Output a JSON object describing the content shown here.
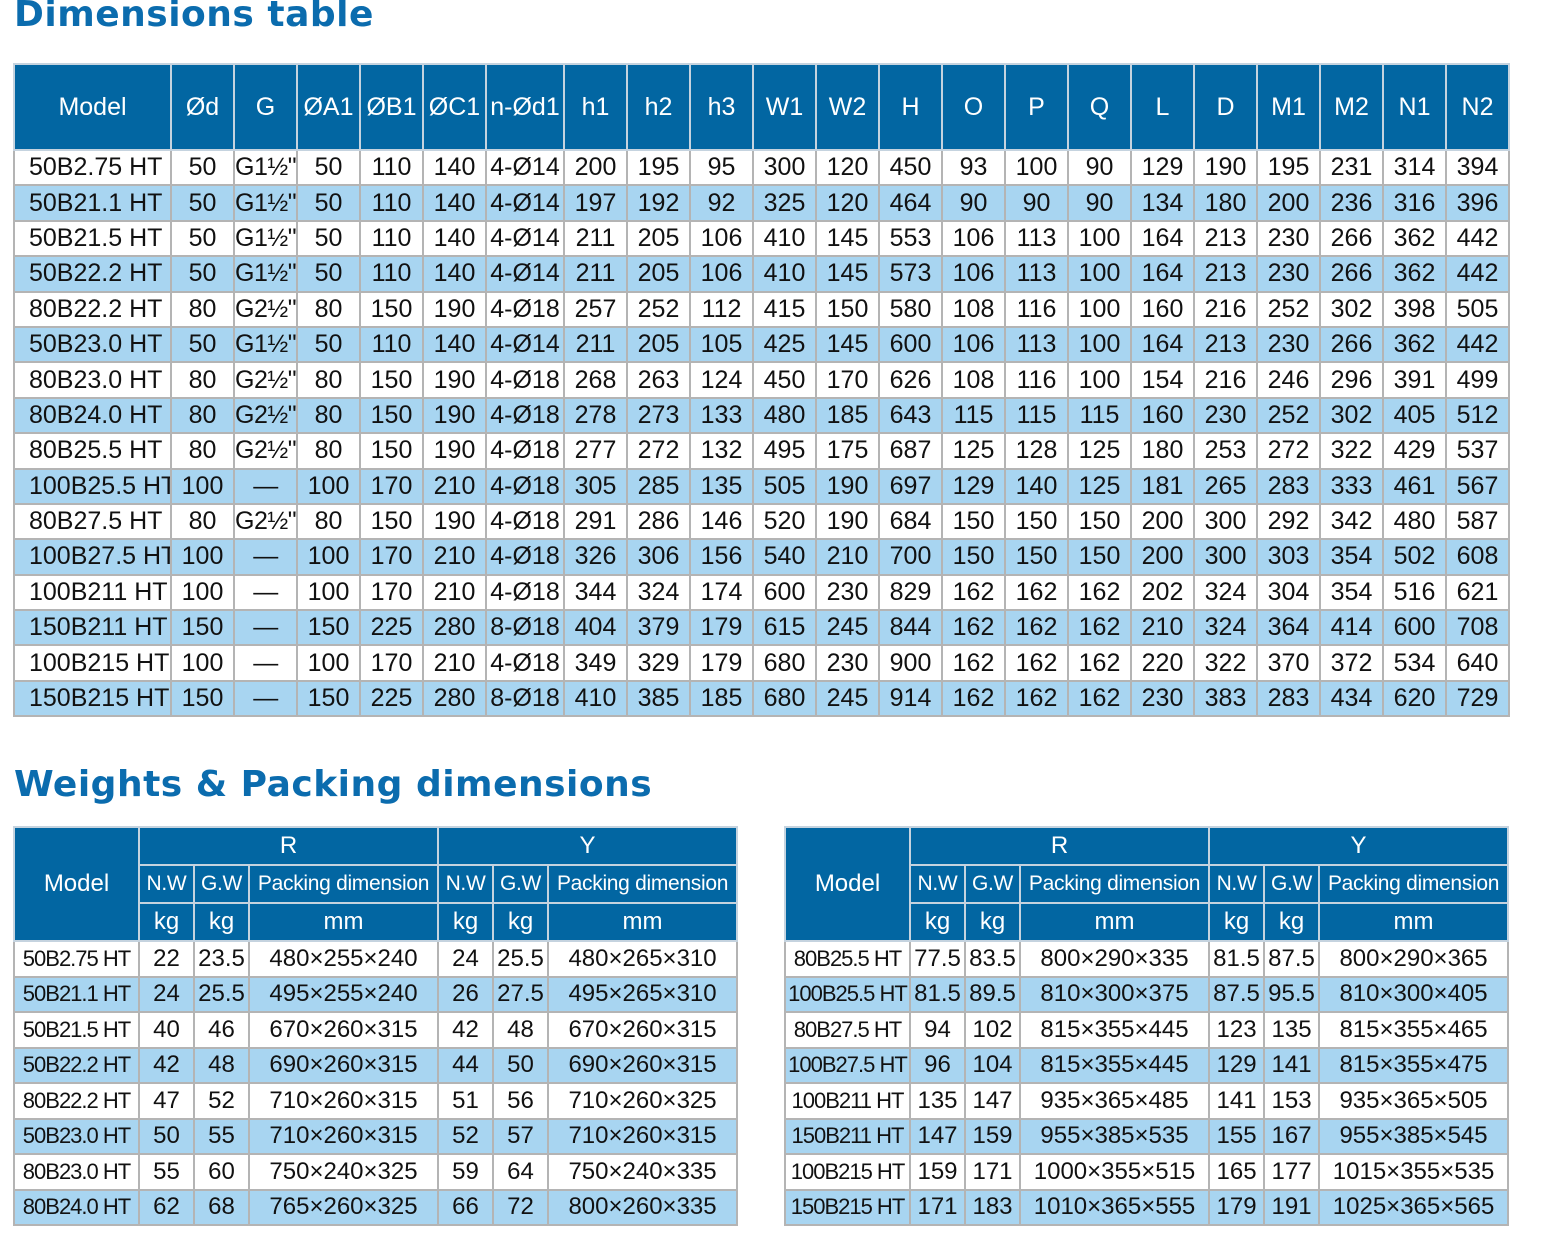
{
  "dimensions": {
    "title": "Dimensions table",
    "headers": [
      "Model",
      "Ød",
      "G",
      "ØA1",
      "ØB1",
      "ØC1",
      "n-Ød1",
      "h1",
      "h2",
      "h3",
      "W1",
      "W2",
      "H",
      "O",
      "P",
      "Q",
      "L",
      "D",
      "M1",
      "M2",
      "N1",
      "N2"
    ],
    "rows": [
      [
        "50B2.75 HT",
        "50",
        "G1½\"",
        "50",
        "110",
        "140",
        "4-Ø14",
        "200",
        "195",
        "95",
        "300",
        "120",
        "450",
        "93",
        "100",
        "90",
        "129",
        "190",
        "195",
        "231",
        "314",
        "394"
      ],
      [
        "50B21.1 HT",
        "50",
        "G1½\"",
        "50",
        "110",
        "140",
        "4-Ø14",
        "197",
        "192",
        "92",
        "325",
        "120",
        "464",
        "90",
        "90",
        "90",
        "134",
        "180",
        "200",
        "236",
        "316",
        "396"
      ],
      [
        "50B21.5 HT",
        "50",
        "G1½\"",
        "50",
        "110",
        "140",
        "4-Ø14",
        "211",
        "205",
        "106",
        "410",
        "145",
        "553",
        "106",
        "113",
        "100",
        "164",
        "213",
        "230",
        "266",
        "362",
        "442"
      ],
      [
        "50B22.2 HT",
        "50",
        "G1½\"",
        "50",
        "110",
        "140",
        "4-Ø14",
        "211",
        "205",
        "106",
        "410",
        "145",
        "573",
        "106",
        "113",
        "100",
        "164",
        "213",
        "230",
        "266",
        "362",
        "442"
      ],
      [
        "80B22.2 HT",
        "80",
        "G2½\"",
        "80",
        "150",
        "190",
        "4-Ø18",
        "257",
        "252",
        "112",
        "415",
        "150",
        "580",
        "108",
        "116",
        "100",
        "160",
        "216",
        "252",
        "302",
        "398",
        "505"
      ],
      [
        "50B23.0 HT",
        "50",
        "G1½\"",
        "50",
        "110",
        "140",
        "4-Ø14",
        "211",
        "205",
        "105",
        "425",
        "145",
        "600",
        "106",
        "113",
        "100",
        "164",
        "213",
        "230",
        "266",
        "362",
        "442"
      ],
      [
        "80B23.0 HT",
        "80",
        "G2½\"",
        "80",
        "150",
        "190",
        "4-Ø18",
        "268",
        "263",
        "124",
        "450",
        "170",
        "626",
        "108",
        "116",
        "100",
        "154",
        "216",
        "246",
        "296",
        "391",
        "499"
      ],
      [
        "80B24.0 HT",
        "80",
        "G2½\"",
        "80",
        "150",
        "190",
        "4-Ø18",
        "278",
        "273",
        "133",
        "480",
        "185",
        "643",
        "115",
        "115",
        "115",
        "160",
        "230",
        "252",
        "302",
        "405",
        "512"
      ],
      [
        "80B25.5 HT",
        "80",
        "G2½\"",
        "80",
        "150",
        "190",
        "4-Ø18",
        "277",
        "272",
        "132",
        "495",
        "175",
        "687",
        "125",
        "128",
        "125",
        "180",
        "253",
        "272",
        "322",
        "429",
        "537"
      ],
      [
        "100B25.5 HT",
        "100",
        "—",
        "100",
        "170",
        "210",
        "4-Ø18",
        "305",
        "285",
        "135",
        "505",
        "190",
        "697",
        "129",
        "140",
        "125",
        "181",
        "265",
        "283",
        "333",
        "461",
        "567"
      ],
      [
        "80B27.5 HT",
        "80",
        "G2½\"",
        "80",
        "150",
        "190",
        "4-Ø18",
        "291",
        "286",
        "146",
        "520",
        "190",
        "684",
        "150",
        "150",
        "150",
        "200",
        "300",
        "292",
        "342",
        "480",
        "587"
      ],
      [
        "100B27.5 HT",
        "100",
        "—",
        "100",
        "170",
        "210",
        "4-Ø18",
        "326",
        "306",
        "156",
        "540",
        "210",
        "700",
        "150",
        "150",
        "150",
        "200",
        "300",
        "303",
        "354",
        "502",
        "608"
      ],
      [
        "100B211 HT",
        "100",
        "—",
        "100",
        "170",
        "210",
        "4-Ø18",
        "344",
        "324",
        "174",
        "600",
        "230",
        "829",
        "162",
        "162",
        "162",
        "202",
        "324",
        "304",
        "354",
        "516",
        "621"
      ],
      [
        "150B211 HT",
        "150",
        "—",
        "150",
        "225",
        "280",
        "8-Ø18",
        "404",
        "379",
        "179",
        "615",
        "245",
        "844",
        "162",
        "162",
        "162",
        "210",
        "324",
        "364",
        "414",
        "600",
        "708"
      ],
      [
        "100B215 HT",
        "100",
        "—",
        "100",
        "170",
        "210",
        "4-Ø18",
        "349",
        "329",
        "179",
        "680",
        "230",
        "900",
        "162",
        "162",
        "162",
        "220",
        "322",
        "370",
        "372",
        "534",
        "640"
      ],
      [
        "150B215 HT",
        "150",
        "—",
        "150",
        "225",
        "280",
        "8-Ø18",
        "410",
        "385",
        "185",
        "680",
        "245",
        "914",
        "162",
        "162",
        "162",
        "230",
        "383",
        "283",
        "434",
        "620",
        "729"
      ]
    ]
  },
  "weights": {
    "title": "Weights & Packing dimensions",
    "header": {
      "model": "Model",
      "groups": [
        "R",
        "Y"
      ],
      "columns": [
        "N.W",
        "G.W",
        "Packing dimension"
      ],
      "units": [
        "kg",
        "kg",
        "mm"
      ]
    },
    "left_rows": [
      [
        "50B2.75 HT",
        "22",
        "23.5",
        "480×255×240",
        "24",
        "25.5",
        "480×265×310"
      ],
      [
        "50B21.1 HT",
        "24",
        "25.5",
        "495×255×240",
        "26",
        "27.5",
        "495×265×310"
      ],
      [
        "50B21.5 HT",
        "40",
        "46",
        "670×260×315",
        "42",
        "48",
        "670×260×315"
      ],
      [
        "50B22.2 HT",
        "42",
        "48",
        "690×260×315",
        "44",
        "50",
        "690×260×315"
      ],
      [
        "80B22.2 HT",
        "47",
        "52",
        "710×260×315",
        "51",
        "56",
        "710×260×325"
      ],
      [
        "50B23.0 HT",
        "50",
        "55",
        "710×260×315",
        "52",
        "57",
        "710×260×315"
      ],
      [
        "80B23.0 HT",
        "55",
        "60",
        "750×240×325",
        "59",
        "64",
        "750×240×335"
      ],
      [
        "80B24.0 HT",
        "62",
        "68",
        "765×260×325",
        "66",
        "72",
        "800×260×335"
      ]
    ],
    "right_rows": [
      [
        "80B25.5 HT",
        "77.5",
        "83.5",
        "800×290×335",
        "81.5",
        "87.5",
        "800×290×365"
      ],
      [
        "100B25.5 HT",
        "81.5",
        "89.5",
        "810×300×375",
        "87.5",
        "95.5",
        "810×300×405"
      ],
      [
        "80B27.5 HT",
        "94",
        "102",
        "815×355×445",
        "123",
        "135",
        "815×355×465"
      ],
      [
        "100B27.5 HT",
        "96",
        "104",
        "815×355×445",
        "129",
        "141",
        "815×355×475"
      ],
      [
        "100B211 HT",
        "135",
        "147",
        "935×365×485",
        "141",
        "153",
        "935×365×505"
      ],
      [
        "150B211 HT",
        "147",
        "159",
        "955×385×535",
        "155",
        "167",
        "955×385×545"
      ],
      [
        "100B215 HT",
        "159",
        "171",
        "1000×355×515",
        "165",
        "177",
        "1015×355×535"
      ],
      [
        "150B215 HT",
        "171",
        "183",
        "1010×365×555",
        "179",
        "191",
        "1025×365×565"
      ]
    ]
  },
  "colors": {
    "header_bg": "#0266a2",
    "alt_row_bg": "#a8d5f1",
    "title": "#0b6cae"
  }
}
